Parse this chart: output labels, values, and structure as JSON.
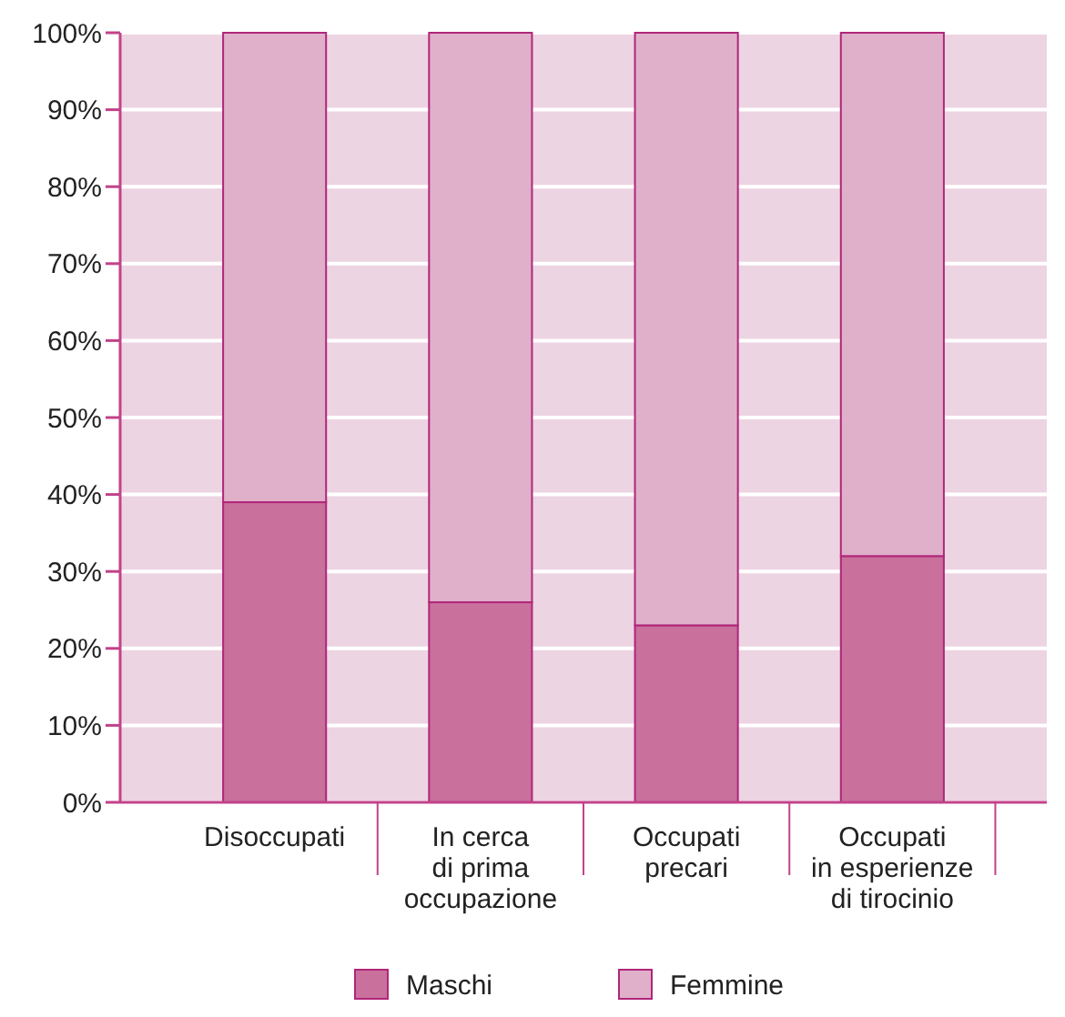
{
  "chart_data": {
    "type": "bar",
    "stacked": true,
    "categories": [
      "Disoccupati",
      "In cerca\ndi prima\noccupazione",
      "Occupati\nprecari",
      "Occupati\nin esperienze\ndi tirocinio"
    ],
    "series": [
      {
        "name": "Maschi",
        "color": "#c9709c",
        "values": [
          39,
          26,
          23,
          32
        ]
      },
      {
        "name": "Femmine",
        "color": "#e0b0ca",
        "values": [
          61,
          74,
          77,
          68
        ]
      }
    ],
    "ylim": [
      0,
      100
    ],
    "yticks": [
      {
        "value": 0,
        "label": "0%"
      },
      {
        "value": 10,
        "label": "10%"
      },
      {
        "value": 20,
        "label": "20%"
      },
      {
        "value": 30,
        "label": "30%"
      },
      {
        "value": 40,
        "label": "40%"
      },
      {
        "value": 50,
        "label": "50%"
      },
      {
        "value": 60,
        "label": "60%"
      },
      {
        "value": 70,
        "label": "70%"
      },
      {
        "value": 80,
        "label": "80%"
      },
      {
        "value": 90,
        "label": "90%"
      },
      {
        "value": 100,
        "label": "100%"
      }
    ],
    "grid": "y",
    "legend": "bottom"
  }
}
